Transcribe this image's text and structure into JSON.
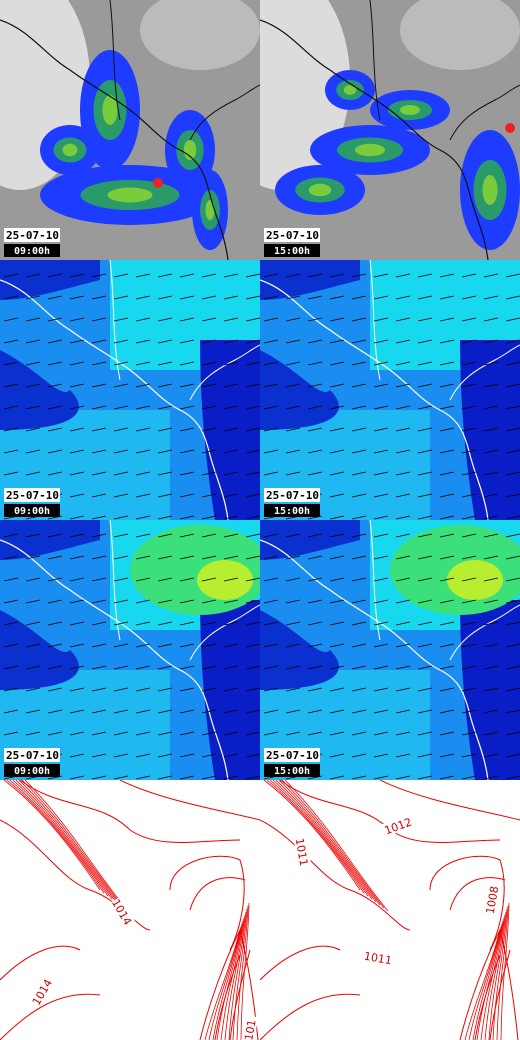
{
  "panels": [
    {
      "date": "25-07-10",
      "time": "09:00h"
    },
    {
      "date": "25-07-10",
      "time": "15:00h"
    },
    {
      "date": "25-07-10",
      "time": "09:00h"
    },
    {
      "date": "25-07-10",
      "time": "15:00h"
    },
    {
      "date": "25-07-10",
      "time": "09:00h"
    },
    {
      "date": "25-07-10",
      "time": "15:00h"
    }
  ],
  "pressure_maps": [
    {
      "labels": [
        "1014",
        "1014",
        "101"
      ]
    },
    {
      "labels": [
        "1012",
        "1011",
        "1008",
        "1011"
      ]
    }
  ]
}
